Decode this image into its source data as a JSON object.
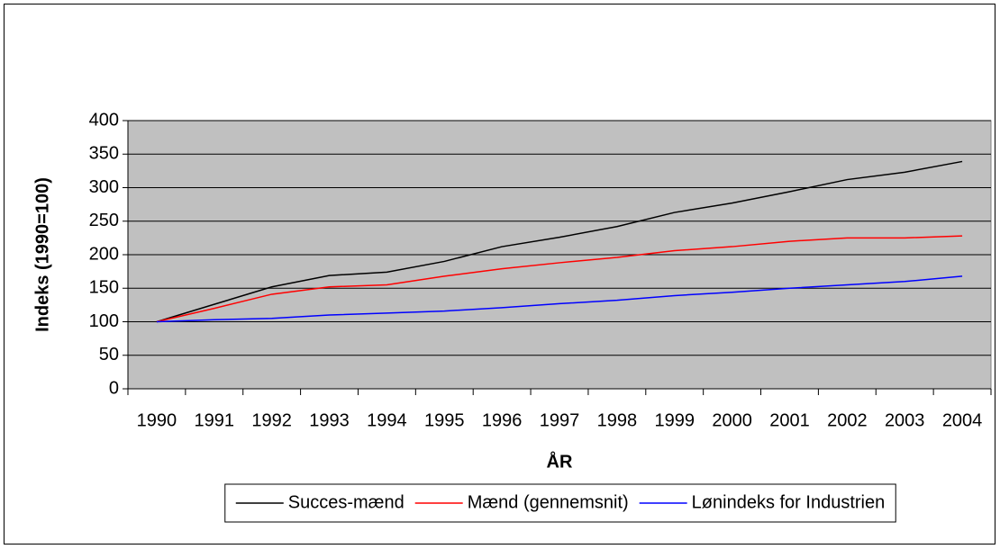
{
  "chart_data": {
    "type": "line",
    "y_label": "Indeks (1990=100)",
    "x_label": "ÅR",
    "categories": [
      "1990",
      "1991",
      "1992",
      "1993",
      "1994",
      "1995",
      "1996",
      "1997",
      "1998",
      "1999",
      "2000",
      "2001",
      "2002",
      "2003",
      "2004"
    ],
    "series": [
      {
        "name": "Succes-mænd",
        "color": "#000000",
        "values": [
          100,
          126,
          152,
          169,
          174,
          190,
          212,
          226,
          242,
          263,
          277,
          294,
          312,
          323,
          339
        ]
      },
      {
        "name": "Mænd (gennemsnit)",
        "color": "#ff0000",
        "values": [
          100,
          120,
          141,
          152,
          155,
          168,
          179,
          188,
          196,
          206,
          212,
          220,
          225,
          225,
          228
        ]
      },
      {
        "name": "Lønindeks for Industrien",
        "color": "#0000ff",
        "values": [
          100,
          103,
          105,
          110,
          113,
          116,
          121,
          127,
          132,
          139,
          144,
          150,
          155,
          160,
          168
        ]
      }
    ],
    "ylim": [
      0,
      400
    ],
    "yticks": [
      0,
      50,
      100,
      150,
      200,
      250,
      300,
      350,
      400
    ],
    "grid": true,
    "legend": "bottom",
    "plot_background": "#c0c0c0"
  }
}
